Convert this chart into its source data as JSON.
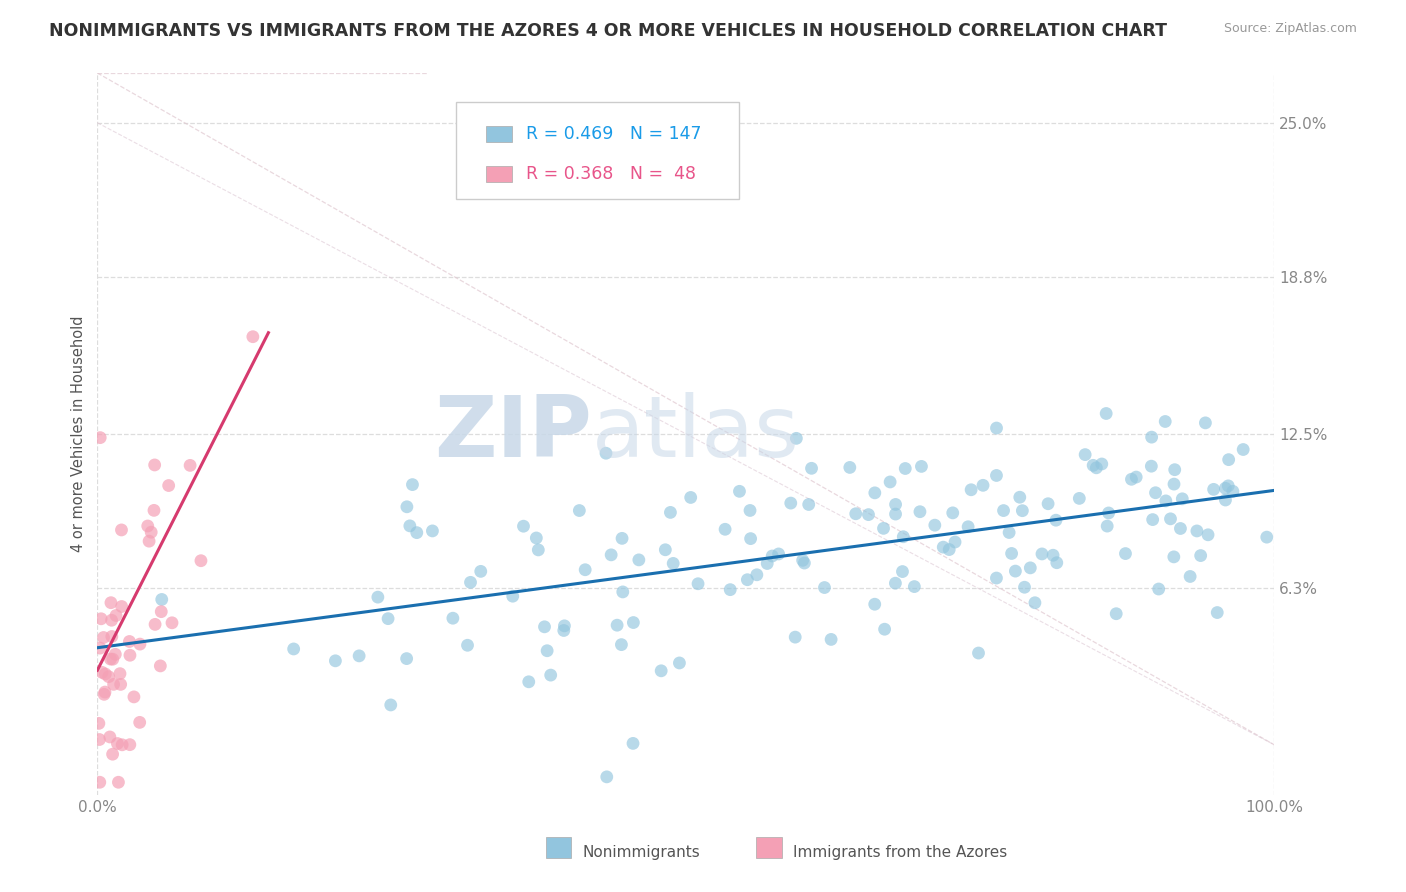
{
  "title": "NONIMMIGRANTS VS IMMIGRANTS FROM THE AZORES 4 OR MORE VEHICLES IN HOUSEHOLD CORRELATION CHART",
  "source": "Source: ZipAtlas.com",
  "ylabel": "4 or more Vehicles in Household",
  "watermark_zip": "ZIP",
  "watermark_atlas": "atlas",
  "series1_label": "Nonimmigrants",
  "series2_label": "Immigrants from the Azores",
  "series1_color": "#92c5de",
  "series2_color": "#f4a0b5",
  "series1_line_color": "#1a6faf",
  "series2_line_color": "#d63a6e",
  "R1": 0.469,
  "N1": 147,
  "R2": 0.368,
  "N2": 48,
  "xmin": 0.0,
  "xmax": 100.0,
  "ymin": -2.0,
  "ymax": 27.0,
  "yticks": [
    6.3,
    12.5,
    18.8,
    25.0
  ],
  "xtick_positions": [
    0.0,
    100.0
  ],
  "xtick_labels": [
    "0.0%",
    "100.0%"
  ],
  "title_color": "#333333",
  "title_fontsize": 12.5,
  "axis_label_color": "#555555",
  "tick_label_color": "#888888",
  "grid_color": "#dddddd",
  "legend_R_color1": "#1a9be8",
  "legend_R_color2": "#e8558a",
  "seed1": 12,
  "seed2": 77
}
